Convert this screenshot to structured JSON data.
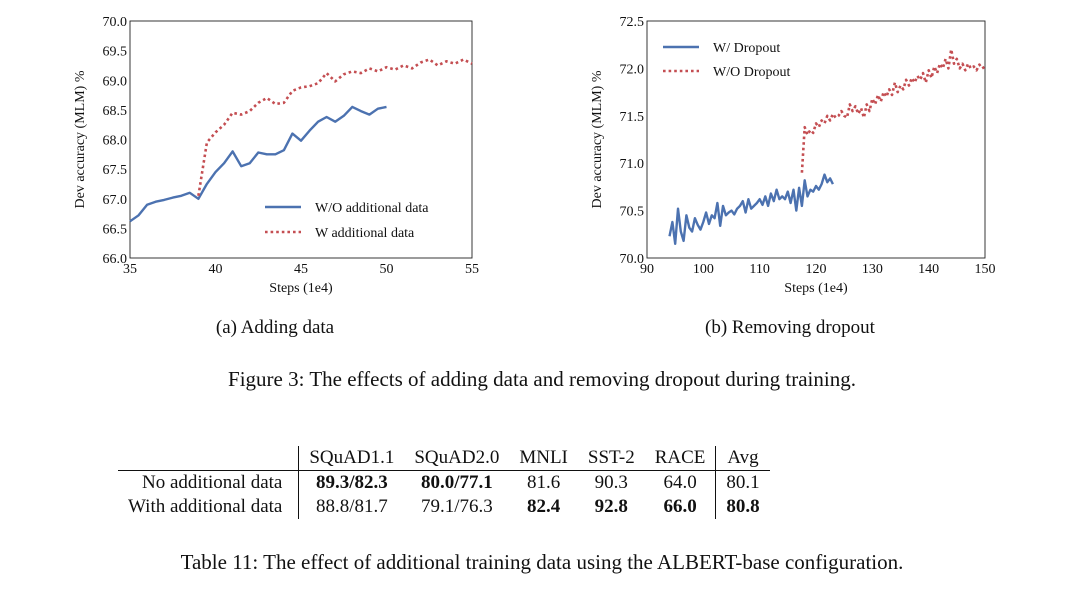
{
  "chart_data": [
    {
      "type": "line",
      "subcaption": "(a) Adding data",
      "xlabel": "Steps (1e4)",
      "ylabel": "Dev accuracy (MLM) %",
      "xlim": [
        35,
        55
      ],
      "ylim": [
        66.0,
        70.0
      ],
      "xticks": [
        "35",
        "40",
        "45",
        "50",
        "55"
      ],
      "yticks": [
        "66.0",
        "66.5",
        "67.0",
        "67.5",
        "68.0",
        "68.5",
        "69.0",
        "69.5",
        "70.0"
      ],
      "legend_position": "lower-right",
      "series": [
        {
          "name": "W/O additional data",
          "style": "solid",
          "color": "#4C72B0",
          "x": [
            35,
            35.5,
            36,
            36.5,
            37,
            37.5,
            38,
            38.5,
            39,
            39.5,
            40,
            40.5,
            41,
            41.5,
            42,
            42.5,
            43,
            43.5,
            44,
            44.5,
            45,
            45.5,
            46,
            46.5,
            47,
            47.5,
            48,
            48.5,
            49,
            49.5,
            50
          ],
          "y": [
            66.62,
            66.72,
            66.9,
            66.95,
            66.98,
            67.02,
            67.05,
            67.1,
            67.0,
            67.25,
            67.45,
            67.6,
            67.8,
            67.55,
            67.6,
            67.78,
            67.75,
            67.75,
            67.82,
            68.1,
            67.98,
            68.15,
            68.3,
            68.38,
            68.3,
            68.4,
            68.55,
            68.48,
            68.42,
            68.52,
            68.55
          ]
        },
        {
          "name": "W additional data",
          "style": "dotted",
          "color": "#C44E52",
          "x": [
            39,
            39.5,
            40,
            40.5,
            41,
            41.5,
            42,
            42.5,
            43,
            43.5,
            44,
            44.5,
            45,
            45.5,
            46,
            46.5,
            47,
            47.5,
            48,
            48.5,
            49,
            49.5,
            50,
            50.5,
            51,
            51.5,
            52,
            52.5,
            53,
            53.5,
            54,
            54.5,
            55
          ],
          "y": [
            67.05,
            67.95,
            68.12,
            68.25,
            68.45,
            68.42,
            68.48,
            68.62,
            68.7,
            68.6,
            68.62,
            68.82,
            68.88,
            68.9,
            68.95,
            69.12,
            68.98,
            69.1,
            69.15,
            69.12,
            69.2,
            69.15,
            69.22,
            69.18,
            69.25,
            69.2,
            69.3,
            69.35,
            69.25,
            69.32,
            69.28,
            69.35,
            69.28
          ]
        }
      ]
    },
    {
      "type": "line",
      "subcaption": "(b) Removing dropout",
      "xlabel": "Steps (1e4)",
      "ylabel": "Dev accuracy (MLM) %",
      "xlim": [
        90,
        150
      ],
      "ylim": [
        70.0,
        72.5
      ],
      "xticks": [
        "90",
        "100",
        "110",
        "120",
        "130",
        "140",
        "150"
      ],
      "yticks": [
        "70.0",
        "70.5",
        "71.0",
        "71.5",
        "72.0",
        "72.5"
      ],
      "legend_position": "upper-left",
      "series": [
        {
          "name": "W/ Dropout",
          "style": "solid",
          "color": "#4C72B0",
          "x": [
            94,
            94.5,
            95,
            95.5,
            96,
            96.5,
            97,
            97.5,
            98,
            98.5,
            99,
            99.5,
            100,
            100.5,
            101,
            101.5,
            102,
            102.5,
            103,
            103.5,
            104,
            104.5,
            105,
            105.5,
            106,
            106.5,
            107,
            107.5,
            108,
            108.5,
            109,
            109.5,
            110,
            110.5,
            111,
            111.5,
            112,
            112.5,
            113,
            113.5,
            114,
            114.5,
            115,
            115.5,
            116,
            116.5,
            117,
            117.5,
            118,
            118.5,
            119,
            119.5,
            120,
            120.5,
            121,
            121.5,
            122,
            122.5,
            123
          ],
          "y": [
            70.23,
            70.38,
            70.15,
            70.52,
            70.28,
            70.18,
            70.45,
            70.32,
            70.28,
            70.42,
            70.35,
            70.3,
            70.38,
            70.48,
            70.36,
            70.45,
            70.42,
            70.58,
            70.34,
            70.55,
            70.45,
            70.48,
            70.5,
            70.46,
            70.52,
            70.55,
            70.6,
            70.48,
            70.62,
            70.52,
            70.55,
            70.58,
            70.62,
            70.56,
            70.65,
            70.55,
            70.68,
            70.6,
            70.72,
            70.62,
            70.65,
            70.62,
            70.7,
            70.58,
            70.72,
            70.5,
            70.74,
            70.55,
            70.82,
            70.65,
            70.72,
            70.7,
            70.76,
            70.72,
            70.78,
            70.88,
            70.8,
            70.84,
            70.78
          ]
        },
        {
          "name": "W/O Dropout",
          "style": "dotted",
          "color": "#C44E52",
          "x": [
            117.5,
            118,
            118.5,
            119,
            119.5,
            120,
            120.5,
            121,
            121.5,
            122,
            122.5,
            123,
            123.5,
            124,
            124.5,
            125,
            125.5,
            126,
            126.5,
            127,
            127.5,
            128,
            128.5,
            129,
            129.5,
            130,
            130.5,
            131,
            131.5,
            132,
            132.5,
            133,
            133.5,
            134,
            134.5,
            135,
            135.5,
            136,
            136.5,
            137,
            137.5,
            138,
            138.5,
            139,
            139.5,
            140,
            140.5,
            141,
            141.5,
            142,
            142.5,
            143,
            143.5,
            144,
            144.5,
            145,
            145.5,
            146,
            146.5,
            147,
            147.5,
            148,
            148.5,
            149,
            149.5,
            150
          ],
          "y": [
            70.9,
            71.38,
            71.3,
            71.35,
            71.32,
            71.42,
            71.38,
            71.45,
            71.42,
            71.5,
            71.45,
            71.52,
            71.48,
            71.5,
            71.55,
            71.5,
            71.48,
            71.62,
            71.55,
            71.6,
            71.52,
            71.58,
            71.48,
            71.62,
            71.55,
            71.68,
            71.62,
            71.72,
            71.65,
            71.75,
            71.7,
            71.78,
            71.72,
            71.85,
            71.75,
            71.82,
            71.78,
            71.88,
            71.82,
            71.9,
            71.85,
            71.92,
            71.88,
            71.95,
            71.85,
            71.98,
            71.9,
            72.02,
            71.95,
            72.05,
            72.0,
            72.1,
            72.0,
            72.2,
            72.05,
            72.1,
            72.0,
            72.05,
            71.98,
            72.05,
            72.0,
            72.02,
            71.98,
            72.04,
            72.0,
            72.02
          ]
        }
      ]
    }
  ],
  "figure_caption": "Figure 3: The effects of adding data and removing dropout during training.",
  "table": {
    "headers": [
      "SQuAD1.1",
      "SQuAD2.0",
      "MNLI",
      "SST-2",
      "RACE",
      "Avg"
    ],
    "rows": [
      {
        "label": "No additional data",
        "values": [
          "89.3/82.3",
          "80.0/77.1",
          "81.6",
          "90.3",
          "64.0",
          "80.1"
        ],
        "bold": [
          true,
          true,
          false,
          false,
          false,
          false
        ]
      },
      {
        "label": "With additional data",
        "values": [
          "88.8/81.7",
          "79.1/76.3",
          "82.4",
          "92.8",
          "66.0",
          "80.8"
        ],
        "bold": [
          false,
          false,
          true,
          true,
          true,
          true
        ]
      }
    ]
  },
  "table_caption": "Table 11: The effect of additional training data using the ALBERT-base configuration."
}
